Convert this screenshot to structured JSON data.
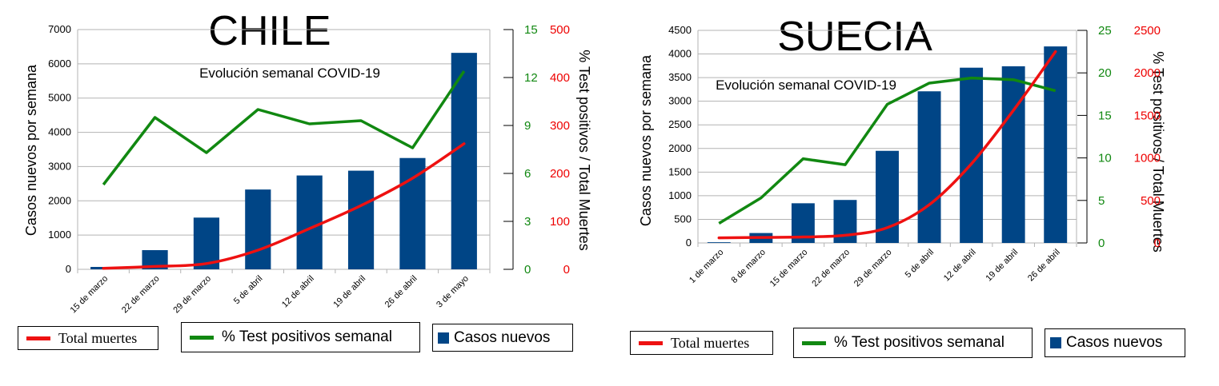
{
  "colors": {
    "bars": "#004586",
    "deaths": "#ee1111",
    "positivity": "#118811",
    "grid": "#b3b3b3",
    "axis": "#000000"
  },
  "chart_data": [
    {
      "type": "bar",
      "title": "CHILE",
      "subtitle": "Evolución semanal COVID-19",
      "ylabel": "Casos nuevos por semana",
      "y2label": "% Test positivos / Total Muertes",
      "categories": [
        "15 de marzo",
        "22 de marzo",
        "29 de marzo",
        "5 de abril",
        "12 de abril",
        "19 de abril",
        "26 de abril",
        "3 de mayo"
      ],
      "ylim": [
        0,
        7000
      ],
      "yticks": [
        "0",
        "1000",
        "2000",
        "3000",
        "4000",
        "5000",
        "6000",
        "7000"
      ],
      "y2_positivity_lim": [
        0,
        15
      ],
      "y2_positivity_ticks": [
        "0",
        "3",
        "6",
        "9",
        "12",
        "15"
      ],
      "y2_deaths_lim": [
        0,
        500
      ],
      "y2_deaths_ticks": [
        "0",
        "100",
        "200",
        "300",
        "400",
        "500"
      ],
      "grid": true,
      "series": [
        {
          "name": "Casos nuevos",
          "kind": "bar",
          "values": [
            70,
            560,
            1510,
            2330,
            2740,
            2880,
            3250,
            6320
          ]
        },
        {
          "name": "% Test positivos semanal",
          "kind": "line",
          "axis": "positivity",
          "values": [
            5.3,
            9.5,
            7.3,
            10.0,
            9.1,
            9.3,
            7.6,
            12.4
          ]
        },
        {
          "name": "Total muertes",
          "kind": "line",
          "axis": "deaths",
          "values": [
            2,
            6,
            12,
            40,
            85,
            133,
            190,
            262
          ]
        }
      ],
      "legend": [
        "Total muertes",
        "% Test positivos semanal",
        "Casos nuevos"
      ]
    },
    {
      "type": "bar",
      "title": "SUECIA",
      "subtitle": "Evolución semanal COVID-19",
      "ylabel": "Casos nuevos por semana",
      "y2label": "% Test positivos / Total Muertes",
      "categories": [
        "1 de marzo",
        "8 de marzo",
        "15 de marzo",
        "22 de marzo",
        "29 de marzo",
        "5 de abril",
        "12 de abril",
        "19 de abril",
        "26 de abril"
      ],
      "ylim": [
        0,
        4500
      ],
      "yticks": [
        "0",
        "500",
        "1000",
        "1500",
        "2000",
        "2500",
        "3000",
        "3500",
        "4000",
        "4500"
      ],
      "y2_positivity_lim": [
        0,
        25
      ],
      "y2_positivity_ticks": [
        "0",
        "5",
        "10",
        "15",
        "20",
        "25"
      ],
      "y2_deaths_lim": [
        0,
        2500
      ],
      "y2_deaths_ticks": [
        "0",
        "500",
        "1000",
        "1500",
        "2000",
        "2500"
      ],
      "grid": true,
      "series": [
        {
          "name": "Casos nuevos",
          "kind": "bar",
          "values": [
            15,
            210,
            840,
            910,
            1950,
            3210,
            3710,
            3740,
            4160
          ]
        },
        {
          "name": "% Test positivos semanal",
          "kind": "line",
          "axis": "positivity",
          "values": [
            2.3,
            5.3,
            9.9,
            9.2,
            16.3,
            18.8,
            19.4,
            19.2,
            17.9
          ]
        },
        {
          "name": "Total muertes",
          "kind": "line",
          "axis": "deaths",
          "values": [
            60,
            65,
            70,
            90,
            180,
            450,
            930,
            1560,
            2250
          ]
        }
      ],
      "legend": [
        "Total muertes",
        "% Test positivos semanal",
        "Casos nuevos"
      ]
    }
  ]
}
